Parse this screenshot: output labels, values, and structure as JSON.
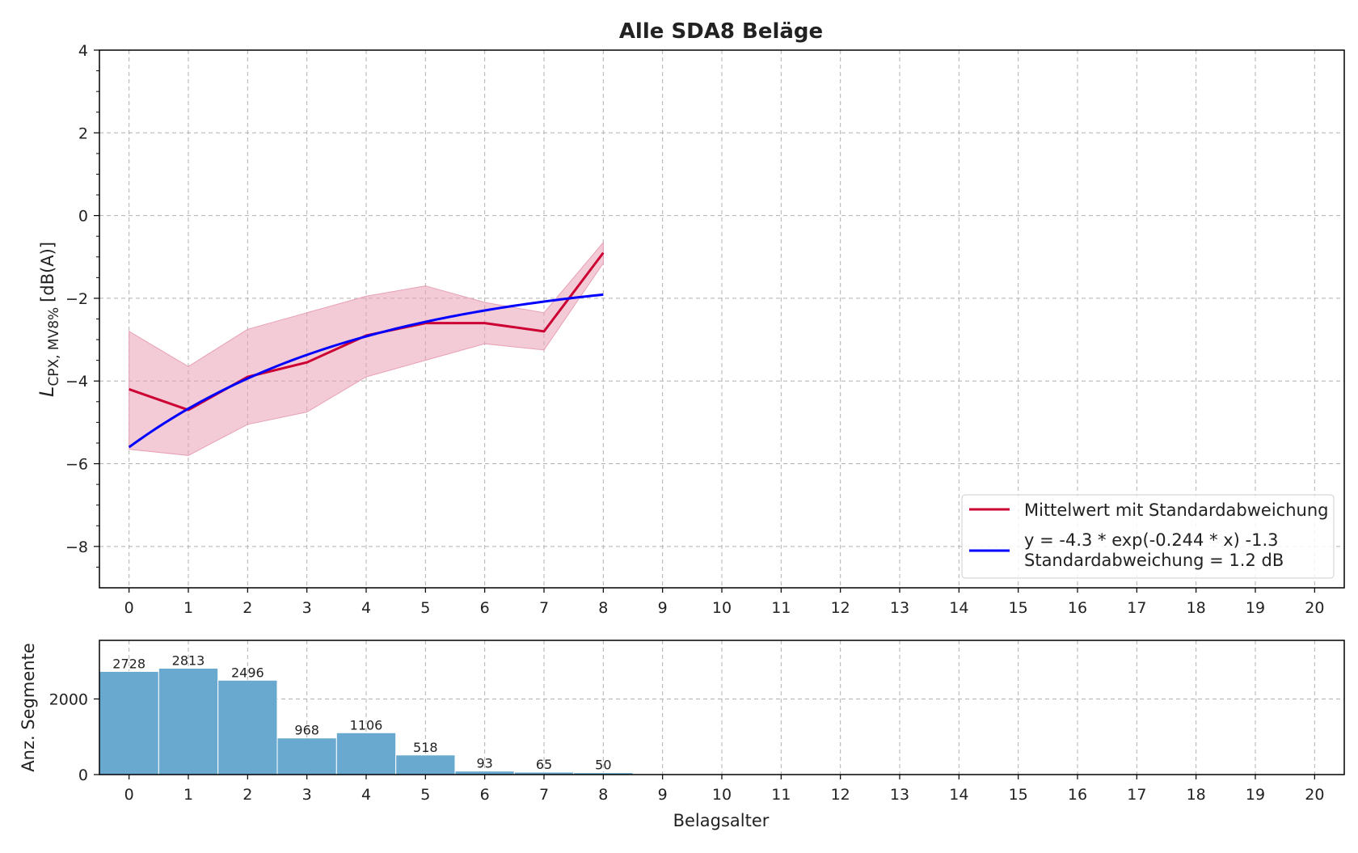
{
  "chart_data": [
    {
      "type": "line",
      "title": "Alle SDA8 Beläge",
      "ylabel_main": "L",
      "ylabel_sub": "CPX, MV8%",
      "ylabel_unit": "[dB(A)]",
      "xlim": [
        -0.5,
        20.5
      ],
      "ylim": [
        -9,
        4
      ],
      "xticks": [
        0,
        1,
        2,
        3,
        4,
        5,
        6,
        7,
        8,
        9,
        10,
        11,
        12,
        13,
        14,
        15,
        16,
        17,
        18,
        19,
        20
      ],
      "yticks": [
        4,
        2,
        0,
        -2,
        -4,
        -6,
        -8
      ],
      "ytick_labels": [
        "4",
        "2",
        "0",
        "−2",
        "−4",
        "−6",
        "−8"
      ],
      "series": [
        {
          "name": "Mittelwert mit Standardabweichung",
          "color": "#cc0033",
          "x": [
            0,
            1,
            2,
            3,
            4,
            5,
            6,
            7,
            8
          ],
          "values": [
            -4.2,
            -4.7,
            -3.9,
            -3.55,
            -2.9,
            -2.6,
            -2.6,
            -2.8,
            -0.9
          ],
          "band_upper": [
            -2.8,
            -3.65,
            -2.75,
            -2.35,
            -1.95,
            -1.7,
            -2.1,
            -2.35,
            -0.65
          ],
          "band_lower": [
            -5.65,
            -5.8,
            -5.05,
            -4.75,
            -3.9,
            -3.5,
            -3.1,
            -3.25,
            -1.15
          ],
          "band_color": "#e8a0b4"
        },
        {
          "name_line1": "y = -4.3 * exp(-0.244 * x) -1.3",
          "name_line2": "Standardabweichung = 1.2 dB",
          "color": "#0000ff",
          "fit": {
            "a": -4.3,
            "b": -0.244,
            "c": -1.3
          },
          "x_range": [
            0,
            8
          ]
        }
      ],
      "legend_position": "lower-right"
    },
    {
      "type": "bar",
      "ylabel": "Anz. Segmente",
      "xlabel": "Belagsalter",
      "xlim": [
        -0.5,
        20.5
      ],
      "ylim": [
        0,
        3550
      ],
      "xticks": [
        0,
        1,
        2,
        3,
        4,
        5,
        6,
        7,
        8,
        9,
        10,
        11,
        12,
        13,
        14,
        15,
        16,
        17,
        18,
        19,
        20
      ],
      "yticks": [
        0,
        2000
      ],
      "categories": [
        0,
        1,
        2,
        3,
        4,
        5,
        6,
        7,
        8
      ],
      "values": [
        2728,
        2813,
        2496,
        968,
        1106,
        518,
        93,
        65,
        50
      ],
      "labels": [
        "2728",
        "2813",
        "2496",
        "968",
        "1106",
        "518",
        "93",
        "65",
        "50"
      ],
      "bar_color": "#6aa9cf"
    }
  ]
}
